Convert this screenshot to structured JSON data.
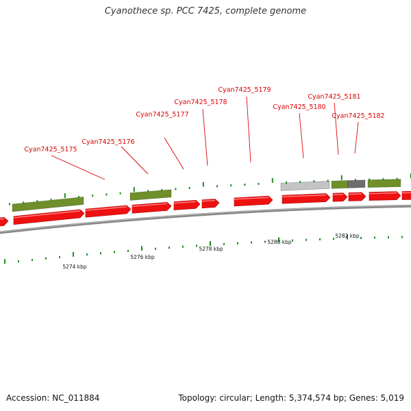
{
  "title": "Cyanothece sp. PCC 7425, complete genome",
  "accession": "Accession: NC_011884",
  "summary": "Topology: circular; Length: 5,374,574 bp; Genes: 5,019",
  "colors": {
    "forward_gene": "#ee1111",
    "other_feature": "#6f8f2a",
    "light_feature": "#c4c4c4",
    "dark_feature": "#6e6e6e",
    "backbone": "#888888",
    "tick": "#1f8a1f",
    "label": "#dd0000"
  },
  "inner_tick_labels": [
    {
      "label": "5274 kbp"
    },
    {
      "label": "5276 kbp"
    },
    {
      "label": "5278 kbp"
    },
    {
      "label": "5280 kbp"
    },
    {
      "label": "5282 kbp"
    }
  ],
  "gene_labels": [
    {
      "label": "Cyan7425_5175"
    },
    {
      "label": "Cyan7425_5176"
    },
    {
      "label": "Cyan7425_5177"
    },
    {
      "label": "Cyan7425_5178"
    },
    {
      "label": "Cyan7425_5179"
    },
    {
      "label": "Cyan7425_5180"
    },
    {
      "label": "Cyan7425_5181"
    },
    {
      "label": "Cyan7425_5182"
    }
  ]
}
